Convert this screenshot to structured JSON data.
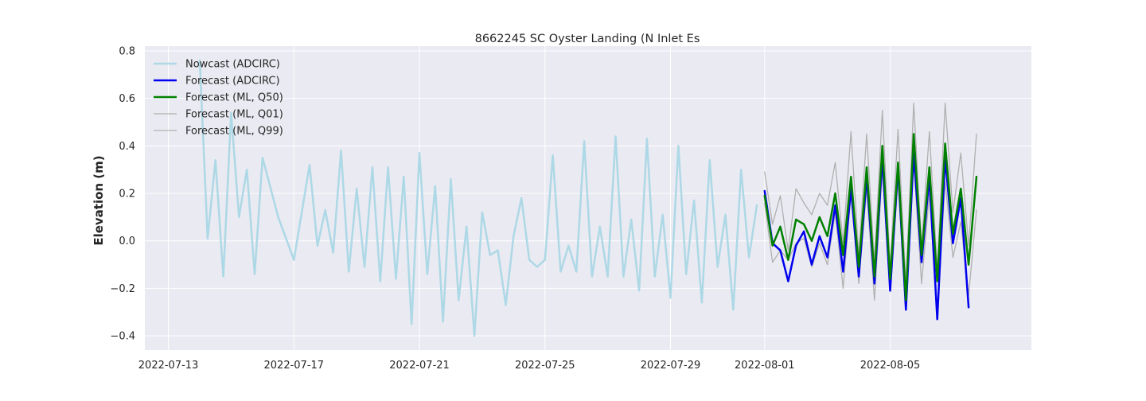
{
  "chart_data": {
    "type": "line",
    "title": "8662245 SC Oyster Landing (N Inlet Es",
    "xlabel": "",
    "ylabel": "Elevation (m)",
    "x_axis": "date",
    "xlim": [
      "2022-07-12T06:00",
      "2022-08-09T12:00"
    ],
    "ylim": [
      -0.46,
      0.82
    ],
    "x_ticks": [
      "2022-07-13",
      "2022-07-17",
      "2022-07-21",
      "2022-07-25",
      "2022-07-29",
      "2022-08-01",
      "2022-08-05"
    ],
    "y_ticks": [
      -0.4,
      -0.2,
      0.0,
      0.2,
      0.4,
      0.6,
      0.8
    ],
    "y_tick_labels": [
      "−0.4",
      "−0.2",
      "0.0",
      "0.2",
      "0.4",
      "0.6",
      "0.8"
    ],
    "grid": true,
    "background": "#eaeaf2",
    "legend_position": "top-left",
    "series": [
      {
        "name": "Nowcast (ADCIRC)",
        "color": "#add8e6",
        "width": 2.5,
        "x": [
          "2022-07-14T00:00",
          "2022-07-14T06:00",
          "2022-07-14T12:00",
          "2022-07-14T18:00",
          "2022-07-15T00:00",
          "2022-07-15T06:00",
          "2022-07-15T12:00",
          "2022-07-15T18:00",
          "2022-07-16T00:00",
          "2022-07-16T12:00",
          "2022-07-17T00:00",
          "2022-07-17T06:00",
          "2022-07-17T12:00",
          "2022-07-17T18:00",
          "2022-07-18T00:00",
          "2022-07-18T06:00",
          "2022-07-18T12:00",
          "2022-07-18T18:00",
          "2022-07-19T00:00",
          "2022-07-19T06:00",
          "2022-07-19T12:00",
          "2022-07-19T18:00",
          "2022-07-20T00:00",
          "2022-07-20T06:00",
          "2022-07-20T12:00",
          "2022-07-20T18:00",
          "2022-07-21T00:00",
          "2022-07-21T06:00",
          "2022-07-21T12:00",
          "2022-07-21T18:00",
          "2022-07-22T00:00",
          "2022-07-22T06:00",
          "2022-07-22T12:00",
          "2022-07-22T18:00",
          "2022-07-23T00:00",
          "2022-07-23T06:00",
          "2022-07-23T12:00",
          "2022-07-23T18:00",
          "2022-07-24T00:00",
          "2022-07-24T06:00",
          "2022-07-24T12:00",
          "2022-07-24T18:00",
          "2022-07-25T00:00",
          "2022-07-25T06:00",
          "2022-07-25T12:00",
          "2022-07-25T18:00",
          "2022-07-26T00:00",
          "2022-07-26T06:00",
          "2022-07-26T12:00",
          "2022-07-26T18:00",
          "2022-07-27T00:00",
          "2022-07-27T06:00",
          "2022-07-27T12:00",
          "2022-07-27T18:00",
          "2022-07-28T00:00",
          "2022-07-28T06:00",
          "2022-07-28T12:00",
          "2022-07-28T18:00",
          "2022-07-29T00:00",
          "2022-07-29T06:00",
          "2022-07-29T12:00",
          "2022-07-29T18:00",
          "2022-07-30T00:00",
          "2022-07-30T06:00",
          "2022-07-30T12:00",
          "2022-07-30T18:00",
          "2022-07-31T00:00",
          "2022-07-31T06:00",
          "2022-07-31T12:00",
          "2022-07-31T18:00"
        ],
        "y": [
          0.76,
          0.01,
          0.34,
          -0.15,
          0.54,
          0.1,
          0.3,
          -0.14,
          0.35,
          0.1,
          -0.08,
          0.12,
          0.32,
          -0.02,
          0.13,
          -0.05,
          0.38,
          -0.13,
          0.22,
          -0.11,
          0.31,
          -0.17,
          0.31,
          -0.16,
          0.27,
          -0.35,
          0.37,
          -0.14,
          0.23,
          -0.34,
          0.26,
          -0.25,
          0.06,
          -0.4,
          0.12,
          -0.06,
          -0.04,
          -0.27,
          0.02,
          0.18,
          -0.08,
          -0.11,
          -0.08,
          0.36,
          -0.13,
          -0.02,
          -0.13,
          0.42,
          -0.15,
          0.06,
          -0.15,
          0.44,
          -0.15,
          0.09,
          -0.21,
          0.43,
          -0.15,
          0.11,
          -0.24,
          0.4,
          -0.14,
          0.17,
          -0.26,
          0.34,
          -0.11,
          0.11,
          -0.29,
          0.3,
          -0.07,
          0.15
        ]
      },
      {
        "name": "Forecast (ADCIRC)",
        "color": "#0000ee",
        "width": 2.5,
        "x": [
          "2022-08-01T00:00",
          "2022-08-01T06:00",
          "2022-08-01T12:00",
          "2022-08-01T18:00",
          "2022-08-02T00:00",
          "2022-08-02T06:00",
          "2022-08-02T12:00",
          "2022-08-02T18:00",
          "2022-08-03T00:00",
          "2022-08-03T06:00",
          "2022-08-03T12:00",
          "2022-08-03T18:00",
          "2022-08-04T00:00",
          "2022-08-04T06:00",
          "2022-08-04T12:00",
          "2022-08-04T18:00",
          "2022-08-05T00:00",
          "2022-08-05T06:00",
          "2022-08-05T12:00",
          "2022-08-05T18:00",
          "2022-08-06T00:00",
          "2022-08-06T06:00",
          "2022-08-06T12:00",
          "2022-08-06T18:00",
          "2022-08-07T00:00",
          "2022-08-07T06:00",
          "2022-08-07T12:00",
          "2022-08-07T18:00",
          "2022-08-08T00:00"
        ],
        "y": [
          0.21,
          -0.01,
          -0.04,
          -0.17,
          -0.02,
          0.04,
          -0.1,
          0.02,
          -0.07,
          0.15,
          -0.13,
          0.22,
          -0.15,
          0.27,
          -0.18,
          0.35,
          -0.21,
          0.31,
          -0.29,
          0.37,
          -0.09,
          0.27,
          -0.33,
          0.35,
          -0.01,
          0.18,
          -0.28,
          null,
          null
        ]
      },
      {
        "name": "Forecast (ML, Q50)",
        "color": "#008000",
        "width": 2.5,
        "x": [
          "2022-08-01T00:00",
          "2022-08-01T06:00",
          "2022-08-01T12:00",
          "2022-08-01T18:00",
          "2022-08-02T00:00",
          "2022-08-02T06:00",
          "2022-08-02T12:00",
          "2022-08-02T18:00",
          "2022-08-03T00:00",
          "2022-08-03T06:00",
          "2022-08-03T12:00",
          "2022-08-03T18:00",
          "2022-08-04T00:00",
          "2022-08-04T06:00",
          "2022-08-04T12:00",
          "2022-08-04T18:00",
          "2022-08-05T00:00",
          "2022-08-05T06:00",
          "2022-08-05T12:00",
          "2022-08-05T18:00",
          "2022-08-06T00:00",
          "2022-08-06T06:00",
          "2022-08-06T12:00",
          "2022-08-06T18:00",
          "2022-08-07T00:00",
          "2022-08-07T06:00",
          "2022-08-07T12:00",
          "2022-08-07T18:00",
          "2022-08-08T00:00"
        ],
        "y": [
          0.19,
          -0.02,
          0.06,
          -0.08,
          0.09,
          0.07,
          0.0,
          0.1,
          0.02,
          0.2,
          -0.06,
          0.27,
          -0.11,
          0.31,
          -0.15,
          0.4,
          -0.16,
          0.33,
          -0.25,
          0.45,
          -0.06,
          0.31,
          -0.17,
          0.41,
          0.03,
          0.22,
          -0.1,
          0.27,
          null
        ]
      },
      {
        "name": "Forecast (ML, Q01)",
        "color": "#b0b0b0",
        "width": 1.3,
        "x": [
          "2022-08-01T00:00",
          "2022-08-01T06:00",
          "2022-08-01T12:00",
          "2022-08-01T18:00",
          "2022-08-02T00:00",
          "2022-08-02T06:00",
          "2022-08-02T12:00",
          "2022-08-02T18:00",
          "2022-08-03T00:00",
          "2022-08-03T06:00",
          "2022-08-03T12:00",
          "2022-08-03T18:00",
          "2022-08-04T00:00",
          "2022-08-04T06:00",
          "2022-08-04T12:00",
          "2022-08-04T18:00",
          "2022-08-05T00:00",
          "2022-08-05T06:00",
          "2022-08-05T12:00",
          "2022-08-05T18:00",
          "2022-08-06T00:00",
          "2022-08-06T06:00",
          "2022-08-06T12:00",
          "2022-08-06T18:00",
          "2022-08-07T00:00",
          "2022-08-07T06:00",
          "2022-08-07T12:00",
          "2022-08-07T18:00",
          "2022-08-08T00:00"
        ],
        "y": [
          0.16,
          -0.09,
          -0.04,
          -0.08,
          -0.01,
          0.01,
          -0.11,
          -0.01,
          -0.1,
          0.12,
          -0.2,
          0.2,
          -0.18,
          0.22,
          -0.25,
          0.3,
          -0.2,
          0.25,
          -0.29,
          0.33,
          -0.18,
          0.2,
          -0.31,
          0.25,
          -0.07,
          0.08,
          -0.23,
          0.13,
          null
        ]
      },
      {
        "name": "Forecast (ML, Q99)",
        "color": "#b0b0b0",
        "width": 1.3,
        "x": [
          "2022-08-01T00:00",
          "2022-08-01T06:00",
          "2022-08-01T12:00",
          "2022-08-01T18:00",
          "2022-08-02T00:00",
          "2022-08-02T06:00",
          "2022-08-02T12:00",
          "2022-08-02T18:00",
          "2022-08-03T00:00",
          "2022-08-03T06:00",
          "2022-08-03T12:00",
          "2022-08-03T18:00",
          "2022-08-04T00:00",
          "2022-08-04T06:00",
          "2022-08-04T12:00",
          "2022-08-04T18:00",
          "2022-08-05T00:00",
          "2022-08-05T06:00",
          "2022-08-05T12:00",
          "2022-08-05T18:00",
          "2022-08-06T00:00",
          "2022-08-06T06:00",
          "2022-08-06T12:00",
          "2022-08-06T18:00",
          "2022-08-07T00:00",
          "2022-08-07T06:00",
          "2022-08-07T12:00",
          "2022-08-07T18:00",
          "2022-08-08T00:00"
        ],
        "y": [
          0.29,
          0.07,
          0.19,
          -0.04,
          0.22,
          0.16,
          0.11,
          0.2,
          0.15,
          0.33,
          -0.01,
          0.46,
          -0.06,
          0.45,
          -0.09,
          0.55,
          -0.11,
          0.47,
          -0.18,
          0.58,
          -0.02,
          0.46,
          -0.12,
          0.58,
          0.12,
          0.37,
          -0.02,
          0.45,
          null
        ]
      }
    ]
  }
}
